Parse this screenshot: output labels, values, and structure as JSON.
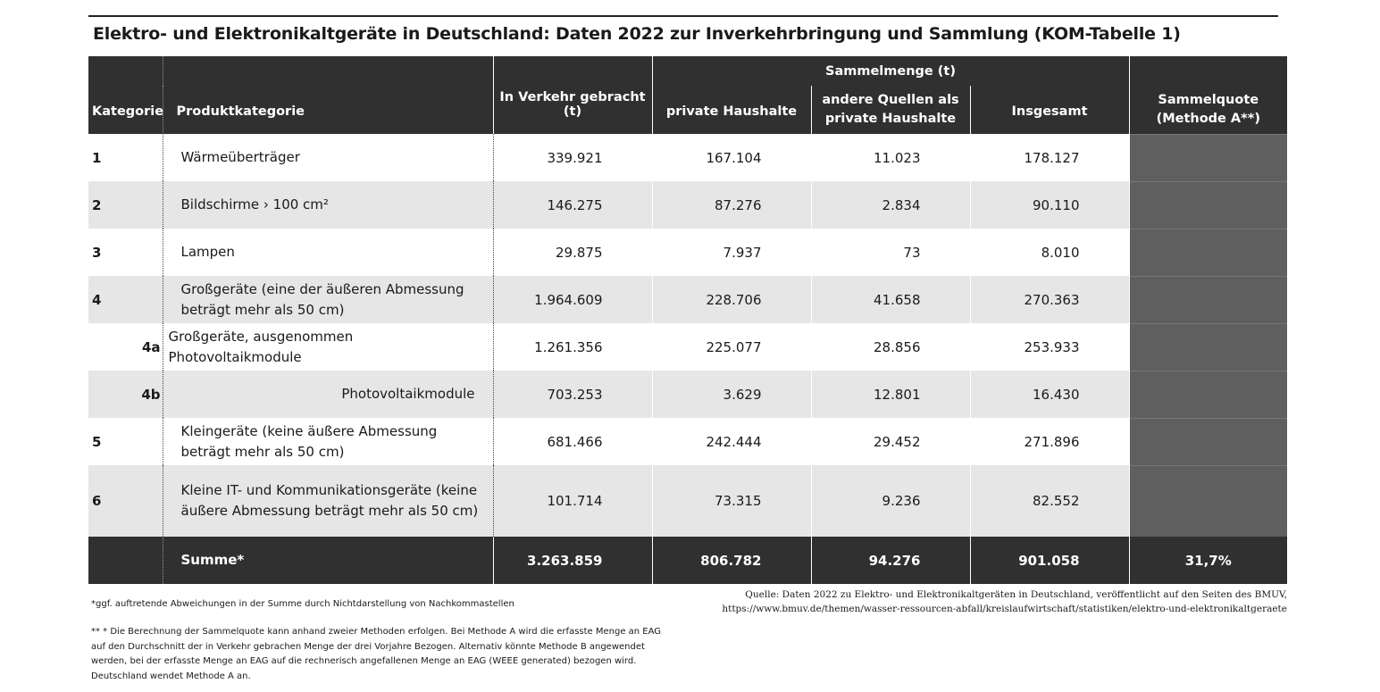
{
  "title": "Elektro- und Elektronikaltgeräte in Deutschland: Daten 2022 zur Inverkehrbringung und Sammlung (KOM-Tabelle 1)",
  "headers": {
    "kategorie": "Kategorie",
    "produktkategorie": "Produktkategorie",
    "in_verkehr": "In Verkehr gebracht (t)",
    "sammelmenge": "Sammelmenge (t)",
    "private": "private Haushalte",
    "andere": "andere Quellen als private Haushalte",
    "insgesamt": "Insgesamt",
    "quote": "Sammelquote (Methode A**)"
  },
  "rows": [
    {
      "kategorie": "1",
      "produkt": "Wärmeüberträger",
      "in_verkehr": "339.921",
      "private": "167.104",
      "andere": "11.023",
      "insgesamt": "178.127"
    },
    {
      "kategorie": "2",
      "produkt": "Bildschirme › 100 cm²",
      "in_verkehr": "146.275",
      "private": "87.276",
      "andere": "2.834",
      "insgesamt": "90.110"
    },
    {
      "kategorie": "3",
      "produkt": "Lampen",
      "in_verkehr": "29.875",
      "private": "7.937",
      "andere": "73",
      "insgesamt": "8.010"
    },
    {
      "kategorie": "4",
      "produkt": "Großgeräte (eine der äußeren Abmessung beträgt mehr als 50 cm)",
      "in_verkehr": "1.964.609",
      "private": "228.706",
      "andere": "41.658",
      "insgesamt": "270.363"
    },
    {
      "kategorie": "4a",
      "produkt": "Großgeräte, ausgenommen Photovoltaikmodule",
      "in_verkehr": "1.261.356",
      "private": "225.077",
      "andere": "28.856",
      "insgesamt": "253.933"
    },
    {
      "kategorie": "4b",
      "produkt": "Photovoltaikmodule",
      "in_verkehr": "703.253",
      "private": "3.629",
      "andere": "12.801",
      "insgesamt": "16.430"
    },
    {
      "kategorie": "5",
      "produkt": "Kleingeräte (keine äußere Abmessung beträgt mehr als 50 cm)",
      "in_verkehr": "681.466",
      "private": "242.444",
      "andere": "29.452",
      "insgesamt": "271.896"
    },
    {
      "kategorie": "6",
      "produkt": "Kleine IT- und Kommunikationsgeräte (keine äußere Abmessung beträgt mehr als 50 cm)",
      "in_verkehr": "101.714",
      "private": "73.315",
      "andere": "9.236",
      "insgesamt": "82.552"
    }
  ],
  "summe": {
    "label": "Summe*",
    "in_verkehr": "3.263.859",
    "private": "806.782",
    "andere": "94.276",
    "insgesamt": "901.058",
    "quote": "31,7%"
  },
  "footnotes": {
    "fn1": "*ggf. auftretende Abweichungen in der Summe durch Nichtdarstellung von Nachkommastellen",
    "fn2": "** * Die Berechnung der Sammelquote kann anhand zweier Methoden erfolgen. Bei Methode A wird die erfasste Menge an EAG auf den Durchschnitt der in Verkehr gebrachen Menge der drei Vorjahre Bezogen. Alternativ könnte Methode B angewendet werden, bei der erfasste Menge an EAG auf die rechnerisch angefallenen Menge an EAG (WEEE generated) bezogen wird. Deutschland wendet Methode A an."
  },
  "source": {
    "line1": "Quelle: Daten 2022 zu Elektro- und Elektronikaltgeräten in Deutschland, veröffentlicht auf den Seiten des BMUV,",
    "line2": "https://www.bmuv.de/themen/wasser-ressourcen-abfall/kreislaufwirtschaft/statistiken/elektro-und-elektronikaltgeraete"
  },
  "colors": {
    "header_bg": "#303030",
    "quota_bg": "#5f5f5f",
    "row_alt": "#e6e6e6"
  }
}
